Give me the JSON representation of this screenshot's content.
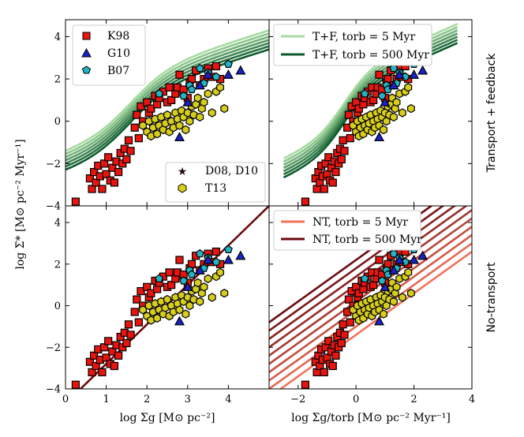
{
  "chart_data": {
    "type": "scatter",
    "y_axis_label": "log Σ̇* [M⊙ pc⁻² Myr⁻¹]",
    "ylim": [
      -4,
      4.8
    ],
    "yticks": [
      "−4",
      "−2",
      "0",
      "2",
      "4"
    ],
    "row_labels": [
      "Transport + feedback",
      "No-transport"
    ],
    "left_column": {
      "xlabel": "log Σg [M⊙ pc⁻²]",
      "xlim": [
        0,
        5
      ],
      "xticks": [
        "0",
        "1",
        "2",
        "3",
        "4"
      ]
    },
    "right_column": {
      "xlabel": "log Σg/torb [M⊙ pc⁻² Myr⁻¹]",
      "xlim": [
        -3,
        4
      ],
      "xticks": [
        "−2",
        "0",
        "2",
        "4"
      ]
    },
    "legend_observations": {
      "K98": "K98",
      "G10": "G10",
      "B07": "B07",
      "D08": "D08, D10",
      "T13": "T13"
    },
    "legend_tf": [
      "T+F, torb = 5 Myr",
      "T+F, torb = 500 Myr"
    ],
    "legend_nt": [
      "NT, torb = 5 Myr",
      "NT, torb = 500 Myr"
    ],
    "colors": {
      "K98": "#e8140e",
      "G10": "#1a22c8",
      "B07": "#21b4c4",
      "T13": "#d7ce1c",
      "D08": "#220a0a",
      "tf_light": "#a6dba0",
      "tf_dark": "#0c5a2c",
      "nt_light": "#f2735a",
      "nt_dark": "#6b0a10"
    },
    "series": [
      {
        "name": "K98",
        "marker": "square",
        "points": [
          [
            0.25,
            -3.8
          ],
          [
            0.6,
            -2.7
          ],
          [
            0.65,
            -3.2
          ],
          [
            0.7,
            -2.4
          ],
          [
            0.75,
            -2.9
          ],
          [
            0.8,
            -2.1
          ],
          [
            0.85,
            -2.6
          ],
          [
            0.9,
            -3.2
          ],
          [
            0.95,
            -2.0
          ],
          [
            1.0,
            -2.5
          ],
          [
            1.05,
            -1.7
          ],
          [
            1.1,
            -2.8
          ],
          [
            1.15,
            -2.2
          ],
          [
            1.2,
            -2.9
          ],
          [
            1.25,
            -1.9
          ],
          [
            1.3,
            -2.4
          ],
          [
            1.35,
            -1.5
          ],
          [
            1.4,
            -2.0
          ],
          [
            1.45,
            -1.3
          ],
          [
            1.5,
            -1.8
          ],
          [
            1.55,
            -0.9
          ],
          [
            1.6,
            -1.4
          ],
          [
            1.7,
            -0.3
          ],
          [
            1.75,
            0.3
          ],
          [
            1.8,
            -0.8
          ],
          [
            1.85,
            0.7
          ],
          [
            1.9,
            0.0
          ],
          [
            2.0,
            0.9
          ],
          [
            2.05,
            0.4
          ],
          [
            2.1,
            0.6
          ],
          [
            2.2,
            1.2
          ],
          [
            2.25,
            0.8
          ],
          [
            2.3,
            1.1
          ],
          [
            2.4,
            1.4
          ],
          [
            2.5,
            0.9
          ],
          [
            2.55,
            1.6
          ],
          [
            2.6,
            1.0
          ],
          [
            2.7,
            1.3
          ],
          [
            2.75,
            1.6
          ],
          [
            2.8,
            2.2
          ],
          [
            2.9,
            1.5
          ],
          [
            3.0,
            1.1
          ],
          [
            3.05,
            1.8
          ],
          [
            3.1,
            2.0
          ],
          [
            3.2,
            2.4
          ],
          [
            3.3,
            1.7
          ],
          [
            3.4,
            2.0
          ],
          [
            3.5,
            2.5
          ],
          [
            3.6,
            2.1
          ],
          [
            3.7,
            2.6
          ],
          [
            3.8,
            2.0
          ]
        ]
      },
      {
        "name": "G10",
        "marker": "triangle",
        "points": [
          [
            2.8,
            -0.75
          ],
          [
            3.0,
            0.9
          ],
          [
            3.3,
            1.7
          ],
          [
            3.5,
            2.2
          ],
          [
            4.0,
            2.2
          ],
          [
            4.3,
            2.4
          ]
        ]
      },
      {
        "name": "B07",
        "marker": "pentagon",
        "points": [
          [
            2.3,
            1.3
          ],
          [
            2.9,
            1.2
          ],
          [
            3.05,
            1.7
          ],
          [
            3.1,
            1.5
          ],
          [
            3.3,
            2.5
          ],
          [
            3.4,
            1.8
          ],
          [
            3.5,
            2.3
          ],
          [
            3.7,
            2.1
          ],
          [
            4.0,
            2.7
          ]
        ]
      },
      {
        "name": "T13",
        "marker": "hexagon",
        "points": [
          [
            1.9,
            -0.2
          ],
          [
            2.0,
            -0.5
          ],
          [
            2.05,
            0.0
          ],
          [
            2.1,
            -0.7
          ],
          [
            2.15,
            -0.3
          ],
          [
            2.2,
            0.1
          ],
          [
            2.25,
            -0.6
          ],
          [
            2.3,
            -0.2
          ],
          [
            2.35,
            0.2
          ],
          [
            2.4,
            -0.4
          ],
          [
            2.45,
            -0.1
          ],
          [
            2.5,
            0.3
          ],
          [
            2.55,
            -0.5
          ],
          [
            2.6,
            0.0
          ],
          [
            2.65,
            -0.3
          ],
          [
            2.7,
            0.4
          ],
          [
            2.75,
            0.1
          ],
          [
            2.8,
            -0.2
          ],
          [
            2.85,
            0.5
          ],
          [
            2.9,
            0.2
          ],
          [
            2.95,
            -0.4
          ],
          [
            3.0,
            0.4
          ],
          [
            3.05,
            0.0
          ],
          [
            3.1,
            0.7
          ],
          [
            3.15,
            0.3
          ],
          [
            3.2,
            0.8
          ],
          [
            3.25,
            1.1
          ],
          [
            3.3,
            0.2
          ],
          [
            3.35,
            0.6
          ],
          [
            3.4,
            0.9
          ],
          [
            3.5,
            1.3
          ],
          [
            3.6,
            0.4
          ],
          [
            3.7,
            1.4
          ],
          [
            3.8,
            1.6
          ],
          [
            3.9,
            0.6
          ]
        ]
      },
      {
        "name": "D08",
        "marker": "star",
        "points": []
      }
    ],
    "right_x_shift": -2.0,
    "tf_curve_offsets": [
      0.5,
      0.35,
      0.2,
      0.05,
      -0.1,
      -0.25,
      -0.4
    ],
    "nt_line_offsets": [
      -2.0,
      -1.6,
      -1.2,
      -0.8,
      -0.4,
      0.0,
      0.4,
      0.8,
      1.2,
      1.6
    ]
  }
}
